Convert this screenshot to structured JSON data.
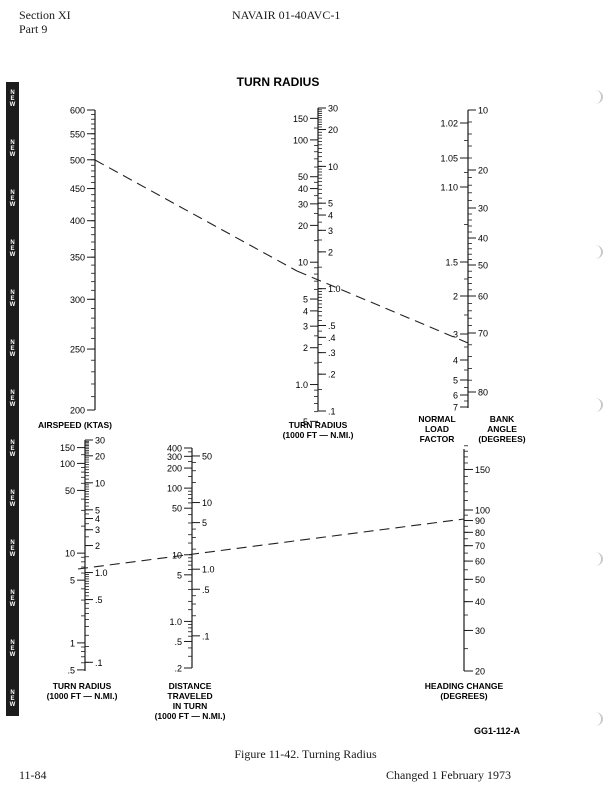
{
  "header": {
    "section": "Section XI",
    "part": "Part 9",
    "doc": "NAVAIR 01-40AVC-1"
  },
  "strip_label": "NEW",
  "diagram": {
    "title": "TURN RADIUS",
    "code": "GG1-112-A",
    "caption": "Figure 11-42.  Turning Radius",
    "scales": {
      "airspeed": {
        "labels": [
          "AIRSPEED (KTAS)"
        ],
        "ticks": [
          "600",
          "550",
          "500",
          "450",
          "400",
          "350",
          "300",
          "250",
          "200"
        ]
      },
      "turn_radius_top": {
        "labels": [
          "TURN RADIUS",
          "(1000 FT — N.MI.)"
        ],
        "left": [
          "150",
          "100",
          "50",
          "40",
          "30",
          "20",
          "10",
          "5",
          "4",
          "3",
          "2",
          "1.0",
          ".5"
        ],
        "right": [
          "30",
          "20",
          "10",
          "5",
          "4",
          "3",
          "2",
          "1.0",
          ".5",
          ".4",
          ".3",
          ".2",
          ".1"
        ]
      },
      "load_factor": {
        "labels": [
          "NORMAL",
          "LOAD",
          "FACTOR"
        ],
        "ticks": [
          "1.02",
          "1.05",
          "1.10",
          "1.5",
          "2",
          "3",
          "4",
          "5",
          "6",
          "7"
        ]
      },
      "bank_angle": {
        "labels": [
          "BANK",
          "ANGLE",
          "(DEGREES)"
        ],
        "ticks": [
          "10",
          "20",
          "30",
          "40",
          "50",
          "60",
          "70",
          "80"
        ]
      },
      "turn_radius_bottom": {
        "labels": [
          "TURN RADIUS",
          "(1000 FT — N.MI.)"
        ],
        "left": [
          "150",
          "100",
          "50",
          "10",
          "5",
          "1",
          ".5"
        ],
        "right": [
          "30",
          "20",
          "10",
          "5",
          "4",
          "3",
          "2",
          "1.0",
          ".5",
          ".1"
        ]
      },
      "distance": {
        "labels": [
          "DISTANCE",
          "TRAVELED",
          "IN TURN",
          "(1000 FT — N.MI.)"
        ],
        "left": [
          "400",
          "300",
          "200",
          "100",
          "50",
          "10",
          "5",
          "1.0",
          ".5",
          ".2"
        ],
        "right": [
          "50",
          "10",
          "5",
          "1.0",
          ".5",
          ".1"
        ]
      },
      "heading_change": {
        "labels": [
          "HEADING CHANGE",
          "(DEGREES)"
        ],
        "ticks": [
          "150",
          "100",
          "90",
          "80",
          "70",
          "60",
          "50",
          "40",
          "30",
          "20"
        ]
      }
    }
  },
  "footer": {
    "page": "11-84",
    "changed": "Changed 1 February 1973"
  }
}
